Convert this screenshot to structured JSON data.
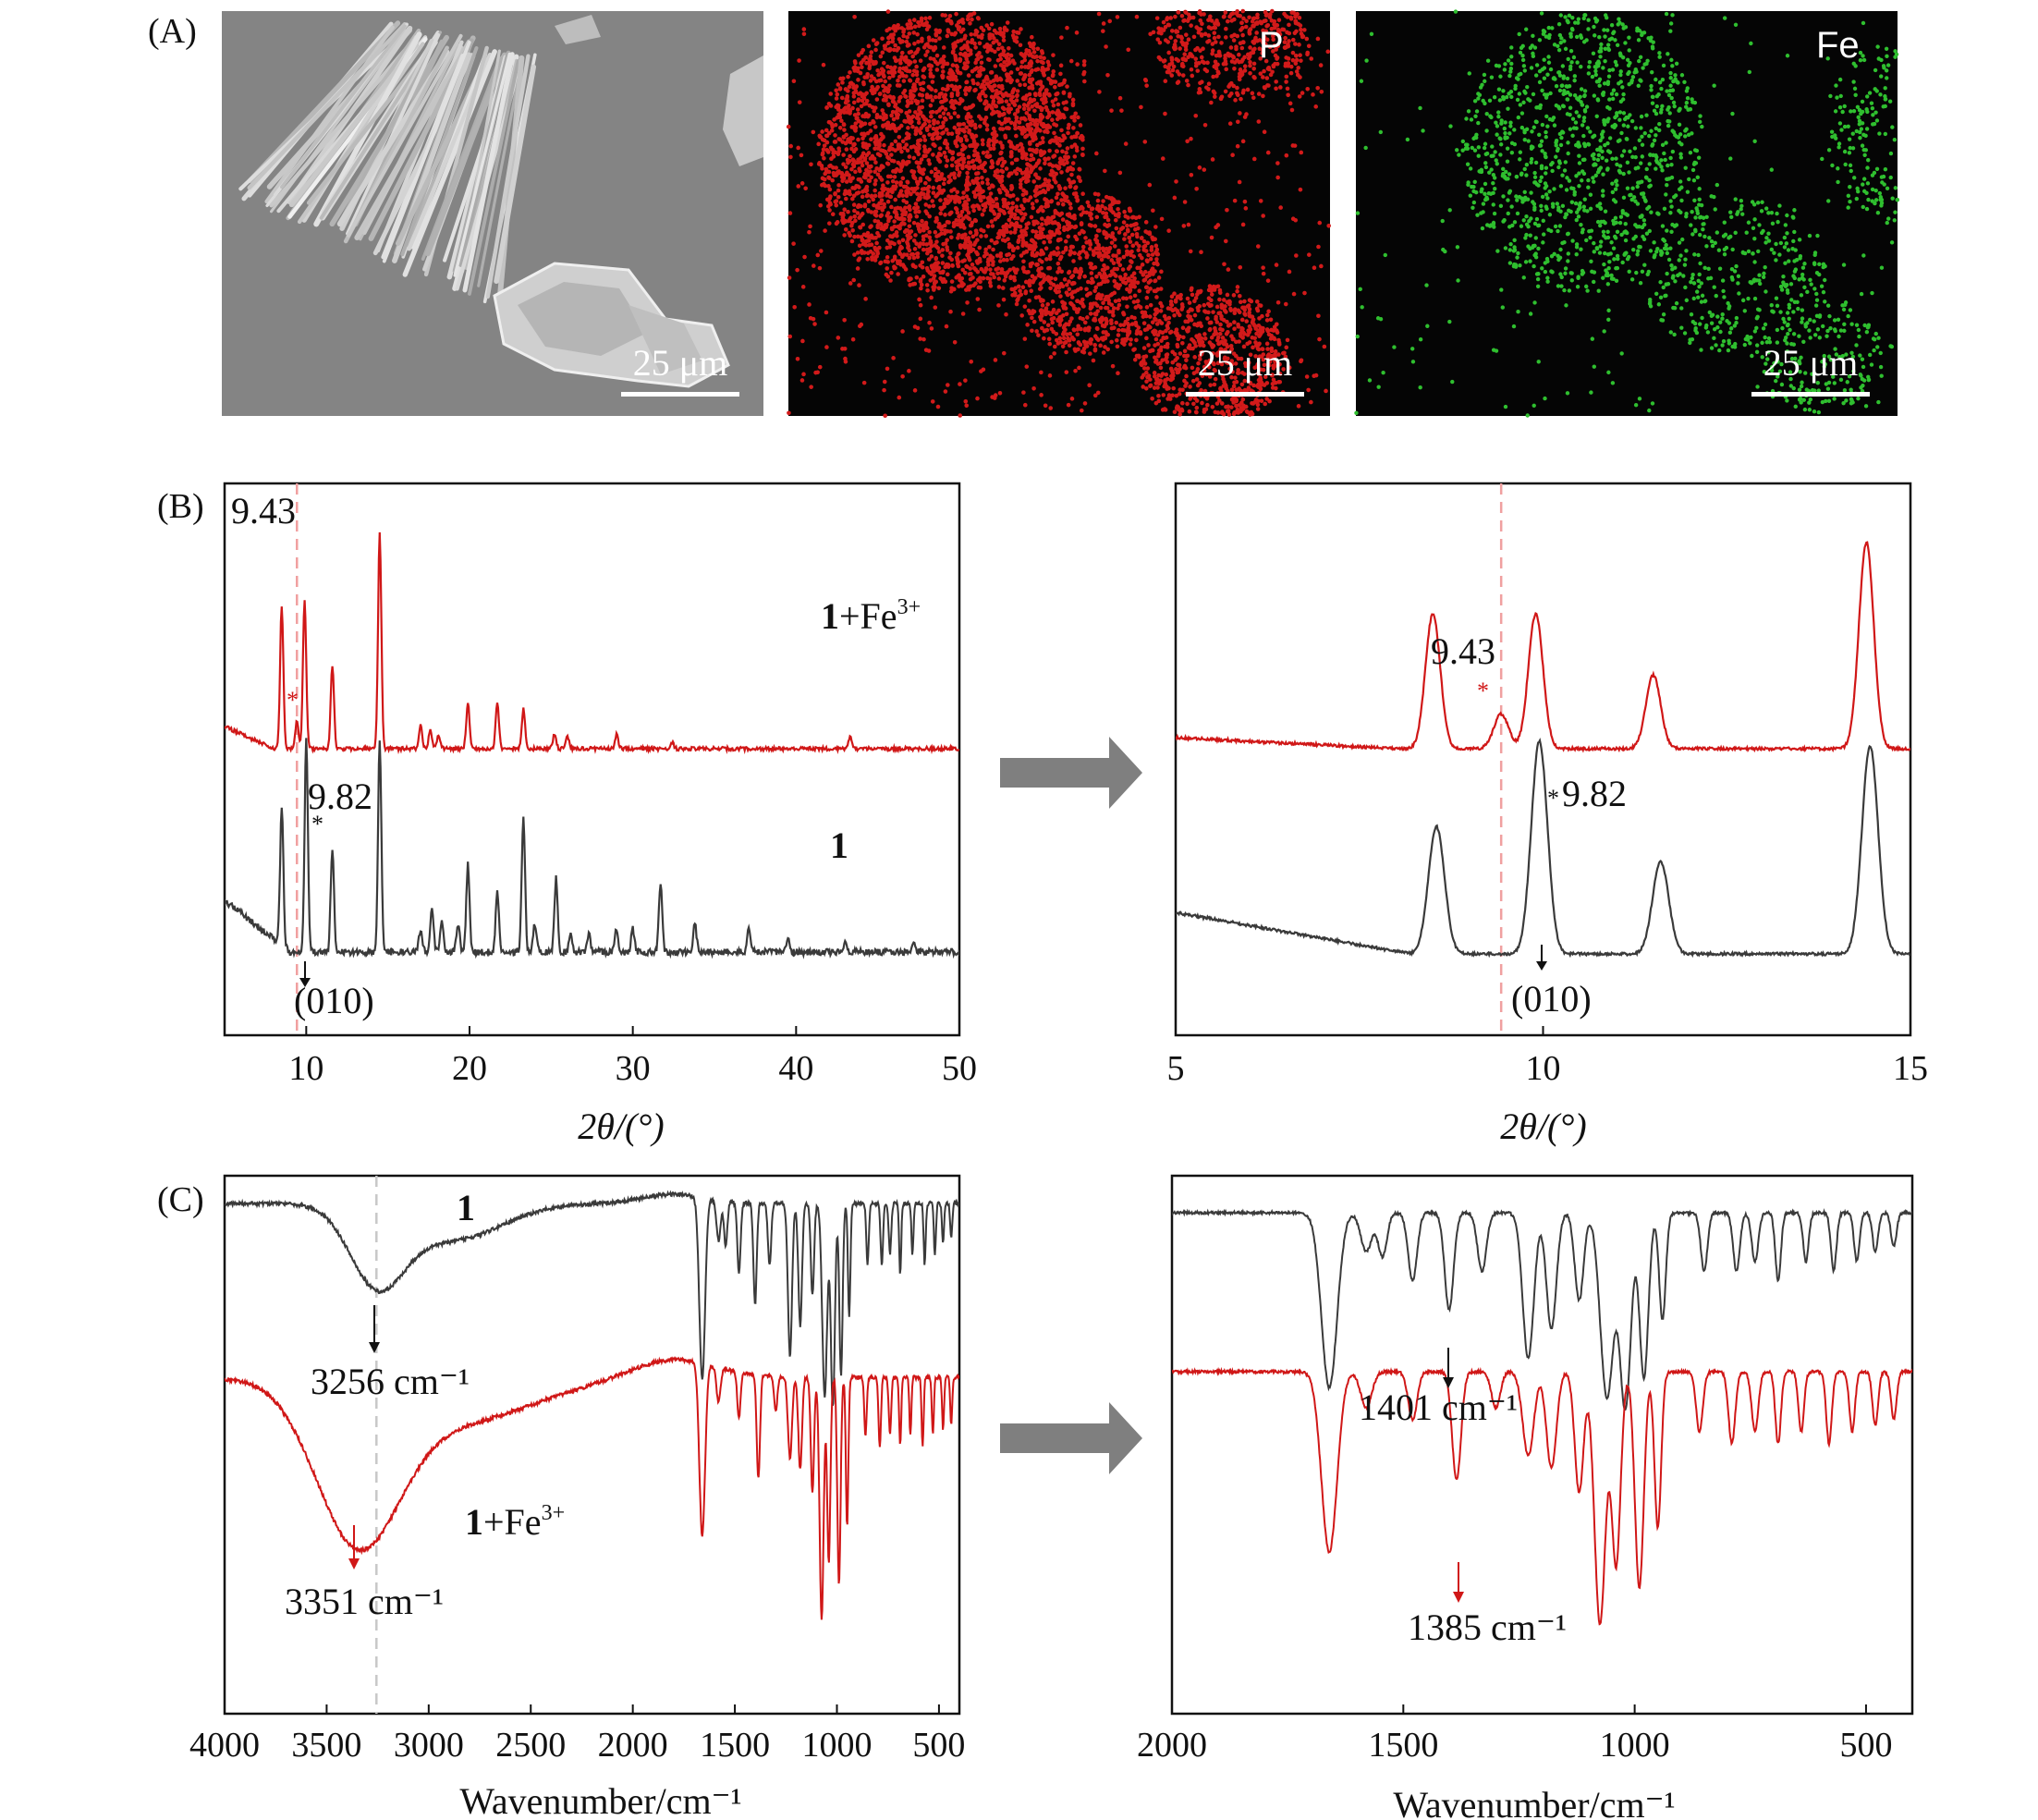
{
  "panels": {
    "A": "(A)",
    "B": "(B)",
    "C": "(C)"
  },
  "sem": {
    "scalebar": "25 μm",
    "maps": [
      {
        "label": "P",
        "color": "#d21a1a"
      },
      {
        "label": "Fe",
        "color": "#2fbf2f"
      }
    ]
  },
  "colors": {
    "red": "#d01717",
    "black": "#3a3a3a",
    "arrow": "#7f7f7f"
  },
  "chart_data": [
    {
      "id": "xrd-full",
      "type": "line",
      "xlabel": "2θ/(°)",
      "xlim": [
        5,
        50
      ],
      "xticks": [
        10,
        20,
        30,
        40,
        50
      ],
      "series": [
        {
          "name": "1+Fe3+",
          "label_bold": "1",
          "label_rest": "+Fe",
          "label_sup": "3+",
          "color": "#d01717",
          "peaks": [
            [
              8.5,
              0.62
            ],
            [
              9.43,
              0.12
            ],
            [
              9.9,
              0.65
            ],
            [
              11.6,
              0.36
            ],
            [
              14.5,
              0.93
            ],
            [
              17.0,
              0.1
            ],
            [
              17.6,
              0.08
            ],
            [
              18.1,
              0.06
            ],
            [
              19.9,
              0.2
            ],
            [
              21.7,
              0.2
            ],
            [
              23.3,
              0.17
            ],
            [
              25.2,
              0.06
            ],
            [
              26.0,
              0.05
            ],
            [
              29.0,
              0.06
            ],
            [
              32.4,
              0.03
            ],
            [
              43.3,
              0.05
            ]
          ]
        },
        {
          "name": "1",
          "label_bold": "1",
          "color": "#3a3a3a",
          "peaks": [
            [
              8.5,
              0.6
            ],
            [
              10.0,
              0.92
            ],
            [
              11.6,
              0.45
            ],
            [
              14.5,
              0.92
            ],
            [
              17.0,
              0.1
            ],
            [
              17.7,
              0.18
            ],
            [
              18.3,
              0.14
            ],
            [
              19.3,
              0.12
            ],
            [
              19.9,
              0.38
            ],
            [
              21.7,
              0.26
            ],
            [
              23.3,
              0.58
            ],
            [
              24.0,
              0.12
            ],
            [
              25.3,
              0.32
            ],
            [
              26.2,
              0.08
            ],
            [
              27.3,
              0.08
            ],
            [
              29.0,
              0.1
            ],
            [
              30.0,
              0.1
            ],
            [
              31.7,
              0.3
            ],
            [
              33.8,
              0.12
            ],
            [
              37.1,
              0.1
            ],
            [
              39.5,
              0.06
            ],
            [
              43.0,
              0.05
            ],
            [
              47.2,
              0.05
            ]
          ]
        }
      ],
      "annotations": [
        "9.43",
        "9.82",
        "(010)"
      ],
      "dashed_x": 9.43
    },
    {
      "id": "xrd-zoom",
      "type": "line",
      "xlabel": "2θ/(°)",
      "xlim": [
        5,
        15
      ],
      "xticks": [
        5,
        10,
        15
      ],
      "series": [
        {
          "name": "1+Fe3+",
          "color": "#d01717",
          "peaks": [
            [
              8.5,
              0.62
            ],
            [
              9.43,
              0.16
            ],
            [
              9.9,
              0.62
            ],
            [
              11.5,
              0.34
            ],
            [
              14.4,
              0.95
            ]
          ]
        },
        {
          "name": "1",
          "color": "#3a3a3a",
          "peaks": [
            [
              8.55,
              0.55
            ],
            [
              9.95,
              0.92
            ],
            [
              11.6,
              0.4
            ],
            [
              14.45,
              0.9
            ]
          ]
        }
      ],
      "annotations": [
        "9.43",
        "9.82",
        "(010)"
      ],
      "dashed_x": 9.43
    },
    {
      "id": "ir-full",
      "type": "line",
      "xlabel": "Wavenumber/cm⁻¹",
      "xlim": [
        4000,
        400
      ],
      "xticks": [
        4000,
        3500,
        3000,
        2500,
        2000,
        1500,
        1000,
        500
      ],
      "series": [
        {
          "name": "1",
          "label_bold": "1",
          "color": "#3a3a3a"
        },
        {
          "name": "1+Fe3+",
          "label_bold": "1",
          "label_rest": "+Fe",
          "label_sup": "3+",
          "color": "#d01717"
        }
      ],
      "annotations": [
        "3256 cm⁻¹",
        "3351 cm⁻¹"
      ],
      "dashed_x": 3256
    },
    {
      "id": "ir-zoom",
      "type": "line",
      "xlabel": "Wavenumber/cm⁻¹",
      "xlim": [
        2000,
        400
      ],
      "xticks": [
        2000,
        1500,
        1000,
        500
      ],
      "series": [
        {
          "name": "1",
          "color": "#3a3a3a"
        },
        {
          "name": "1+Fe3+",
          "color": "#d01717"
        }
      ],
      "annotations": [
        "1401 cm⁻¹",
        "1385 cm⁻¹"
      ]
    }
  ]
}
